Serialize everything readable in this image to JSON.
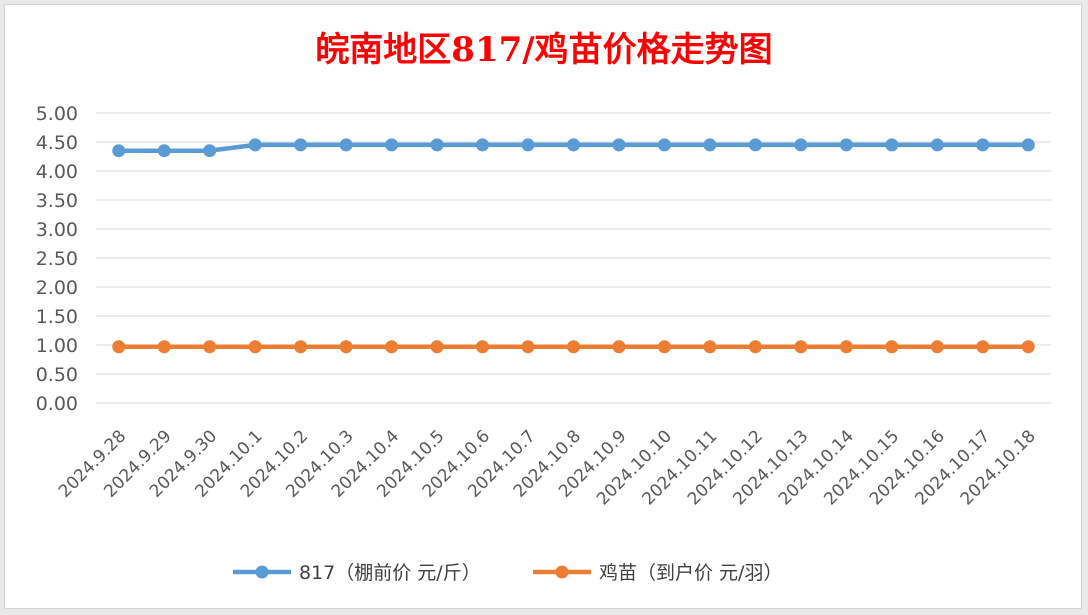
{
  "chart_data": {
    "type": "line",
    "title": "皖南地区817/鸡苗价格走势图",
    "xlabel": "",
    "ylabel": "",
    "ylim": [
      0,
      5
    ],
    "y_ticks": [
      "0.00",
      "0.50",
      "1.00",
      "1.50",
      "2.00",
      "2.50",
      "3.00",
      "3.50",
      "4.00",
      "4.50",
      "5.00"
    ],
    "grid": true,
    "legend_position": "bottom",
    "categories": [
      "2024.9.28",
      "2024.9.29",
      "2024.9.30",
      "2024.10.1",
      "2024.10.2",
      "2024.10.3",
      "2024.10.4",
      "2024.10.5",
      "2024.10.6",
      "2024.10.7",
      "2024.10.8",
      "2024.10.9",
      "2024.10.10",
      "2024.10.11",
      "2024.10.12",
      "2024.10.13",
      "2024.10.14",
      "2024.10.15",
      "2024.10.16",
      "2024.10.17",
      "2024.10.18"
    ],
    "series": [
      {
        "name": "817（棚前价 元/斤）",
        "color": "#5B9BD5",
        "values": [
          4.35,
          4.35,
          4.35,
          4.45,
          4.45,
          4.45,
          4.45,
          4.45,
          4.45,
          4.45,
          4.45,
          4.45,
          4.45,
          4.45,
          4.45,
          4.45,
          4.45,
          4.45,
          4.45,
          4.45,
          4.45
        ]
      },
      {
        "name": "鸡苗（到户价 元/羽）",
        "color": "#ED7D31",
        "values": [
          0.97,
          0.97,
          0.97,
          0.97,
          0.97,
          0.97,
          0.97,
          0.97,
          0.97,
          0.97,
          0.97,
          0.97,
          0.97,
          0.97,
          0.97,
          0.97,
          0.97,
          0.97,
          0.97,
          0.97,
          0.97
        ]
      }
    ],
    "title_color": "#FF0000",
    "grid_color": "#D9D9D9",
    "tick_color": "#595959"
  }
}
